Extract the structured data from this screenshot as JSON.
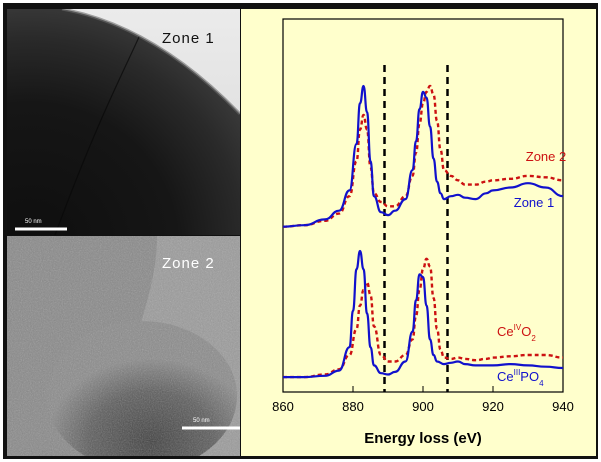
{
  "images": {
    "top": {
      "label": "Zone 1",
      "scalebar": "50 nm"
    },
    "bottom": {
      "label": "Zone 2",
      "scalebar": "50 nm"
    }
  },
  "chart_data": {
    "type": "line",
    "xlabel": "Energy loss (eV)",
    "xlim": [
      860,
      940
    ],
    "xticks": [
      860,
      880,
      900,
      920,
      940
    ],
    "ylabel": "",
    "yaxis_ticks": false,
    "vertical_lines": [
      889,
      907
    ],
    "colors": {
      "blue": "#1111cc",
      "red": "#cc1111"
    },
    "labels": {
      "zone2": "Zone 2",
      "zone1": "Zone 1",
      "ceo2_base": "Ce",
      "ceo2_sup": "IV",
      "ceo2_mid": "O",
      "ceo2_sub": "2",
      "cepo4_base": "Ce",
      "cepo4_sup": "III",
      "cepo4_mid": "PO",
      "cepo4_sub": "4"
    },
    "series": [
      {
        "name": "Zone 1",
        "group": "top",
        "style": "solid",
        "x": [
          860,
          866,
          872,
          876,
          879,
          881,
          882,
          883,
          884,
          885,
          886,
          888,
          890,
          892,
          895,
          897,
          898,
          899,
          900,
          901,
          902,
          903,
          904,
          905,
          906,
          908,
          910,
          912,
          915,
          918,
          920,
          925,
          930,
          935,
          940
        ],
        "y": [
          3,
          4,
          8,
          14,
          28,
          60,
          88,
          100,
          82,
          48,
          24,
          13,
          11,
          14,
          22,
          42,
          62,
          84,
          96,
          92,
          72,
          50,
          34,
          26,
          22,
          24,
          25,
          23,
          22,
          26,
          28,
          30,
          33,
          30,
          24
        ]
      },
      {
        "name": "Zone 2",
        "group": "top",
        "style": "dashed",
        "x": [
          860,
          866,
          872,
          876,
          879,
          881,
          882,
          883,
          884,
          885,
          886,
          888,
          890,
          892,
          895,
          897,
          898,
          899,
          900,
          901,
          902,
          903,
          904,
          905,
          906,
          908,
          910,
          912,
          915,
          918,
          920,
          925,
          930,
          935,
          940
        ],
        "y": [
          3,
          4,
          7,
          12,
          24,
          48,
          70,
          80,
          70,
          44,
          26,
          20,
          17,
          17,
          24,
          38,
          54,
          74,
          88,
          96,
          100,
          94,
          76,
          56,
          42,
          38,
          35,
          32,
          32,
          34,
          35,
          36,
          38,
          37,
          35
        ]
      },
      {
        "name": "CeIVO2",
        "group": "bottom",
        "style": "dashed",
        "x": [
          860,
          866,
          872,
          876,
          879,
          881,
          882,
          883,
          884,
          885,
          886,
          888,
          890,
          892,
          895,
          897,
          898,
          899,
          900,
          901,
          902,
          903,
          904,
          905,
          906,
          908,
          910,
          912,
          915,
          918,
          920,
          925,
          930,
          935,
          940
        ],
        "y": [
          3,
          3,
          5,
          9,
          20,
          40,
          58,
          70,
          76,
          66,
          42,
          20,
          15,
          15,
          20,
          32,
          50,
          70,
          86,
          94,
          88,
          64,
          40,
          24,
          18,
          17,
          18,
          17,
          16,
          17,
          18,
          19,
          20,
          20,
          18
        ]
      },
      {
        "name": "CeIIIPO4",
        "group": "bottom",
        "style": "solid",
        "x": [
          860,
          866,
          872,
          876,
          879,
          880,
          881,
          882,
          883,
          884,
          885,
          886,
          888,
          890,
          892,
          895,
          897,
          898,
          899,
          900,
          901,
          902,
          903,
          904,
          906,
          908,
          910,
          912,
          915,
          918,
          920,
          925,
          930,
          935,
          940
        ],
        "y": [
          3,
          3,
          4,
          8,
          26,
          54,
          86,
          100,
          86,
          52,
          26,
          12,
          6,
          5,
          7,
          15,
          38,
          62,
          82,
          80,
          58,
          32,
          20,
          15,
          13,
          14,
          15,
          13,
          12,
          12,
          12,
          13,
          12,
          11,
          10
        ]
      }
    ]
  }
}
